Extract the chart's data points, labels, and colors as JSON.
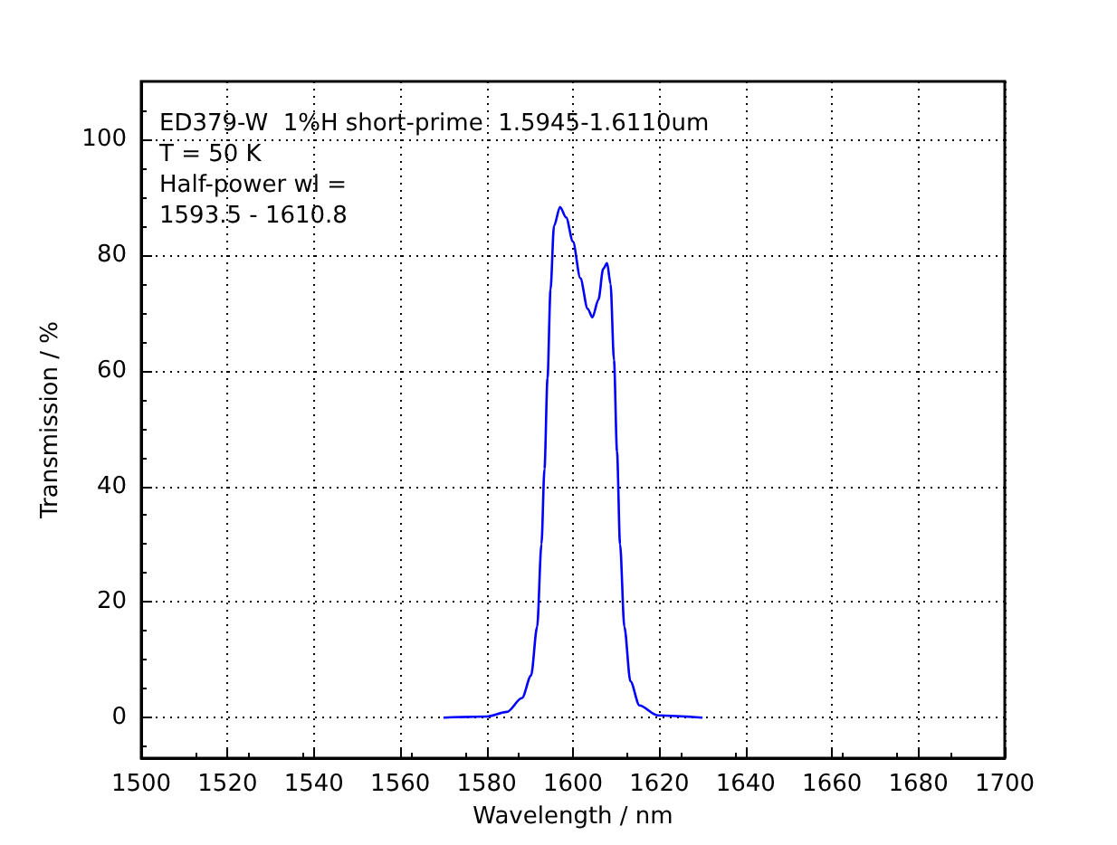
{
  "chart_data": {
    "type": "line",
    "xlabel": "Wavelength / nm",
    "ylabel": "Transmission / %",
    "annotations": [
      "ED379-W  1%H short-prime  1.5945-1.6110um",
      "T = 50 K",
      "Half-power wl =",
      "1593.5 - 1610.8"
    ],
    "x": [
      1570,
      1580,
      1584.7,
      1588.2,
      1590.3,
      1591.7,
      1592.7,
      1593.4,
      1594.1,
      1594.8,
      1595.6,
      1597.0,
      1598.4,
      1600,
      1601.7,
      1603.4,
      1604.5,
      1605.9,
      1607.0,
      1607.9,
      1608.7,
      1609.5,
      1610.2,
      1610.9,
      1611.9,
      1613.3,
      1615.4,
      1619.6,
      1630
    ],
    "series": [
      {
        "color": "#0000ff",
        "values": [
          0,
          0.2,
          1,
          3.4,
          7.3,
          15.7,
          30,
          43,
          58.7,
          74,
          85,
          88.3,
          86.5,
          82.3,
          76,
          70.7,
          69.2,
          72.3,
          77.6,
          78.6,
          75,
          61.8,
          46,
          30,
          15.7,
          6.3,
          2.1,
          0.4,
          0
        ]
      }
    ],
    "xlim": [
      1500,
      1700
    ],
    "xticks": [
      1500,
      1520,
      1540,
      1560,
      1580,
      1600,
      1620,
      1640,
      1660,
      1680,
      1700
    ],
    "ylim": [
      -7,
      110
    ],
    "yticks": [
      0,
      20,
      40,
      60,
      80,
      100
    ],
    "grid": true,
    "marker": "none",
    "line_style": "solid"
  }
}
